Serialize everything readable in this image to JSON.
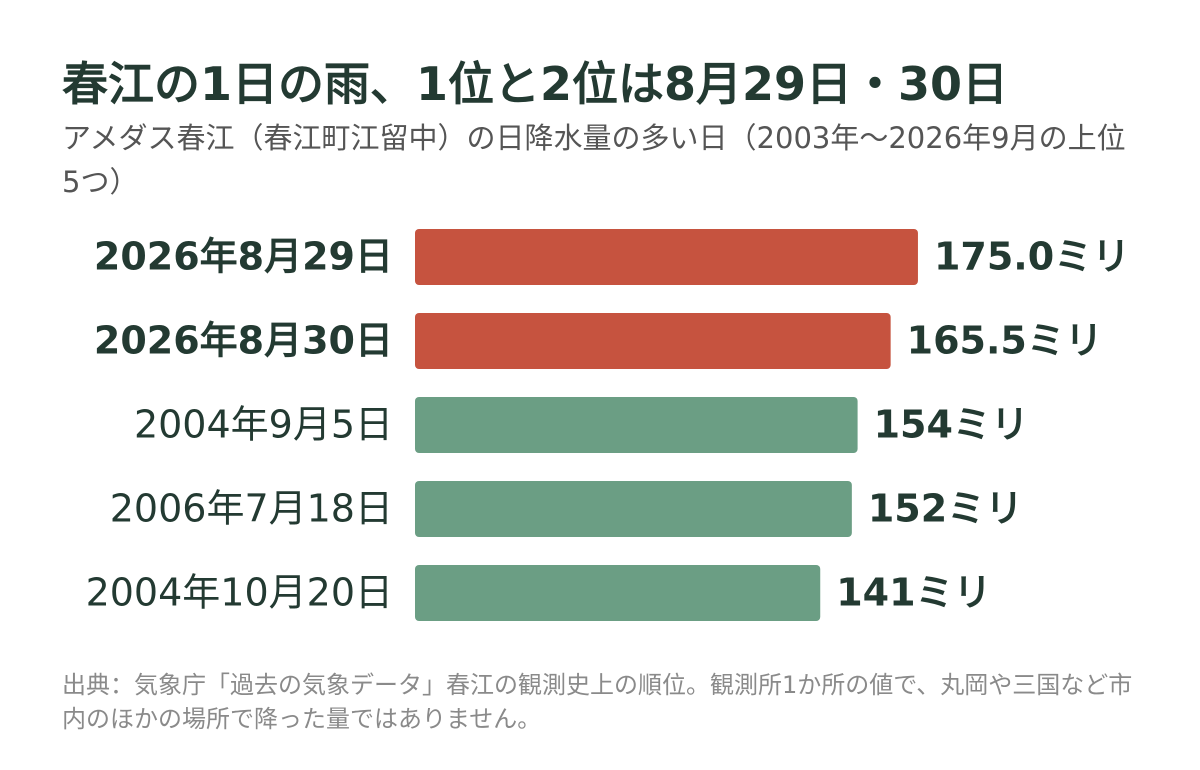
{
  "chart_data": {
    "type": "bar",
    "title": "春江の1日の雨、1位と2位は8月29日・30日",
    "subtitle": "アメダス春江（春江町江留中）の日降水量の多い日（2003年～2026年9月の上位5つ）",
    "categories": [
      "2026年8月29日",
      "2026年8月30日",
      "2004年9月5日",
      "2006年7月18日",
      "2004年10月20日"
    ],
    "values": [
      175.0,
      165.5,
      154,
      152,
      141
    ],
    "value_labels": [
      "175.0ミリ",
      "165.5ミリ",
      "154ミリ",
      "152ミリ",
      "141ミリ"
    ],
    "colors": [
      "#c6533f",
      "#c6533f",
      "#6b9e84",
      "#6b9e84",
      "#6b9e84"
    ],
    "source": "出典：気象庁「過去の気象データ」春江の観測史上の順位。観測所1か所の値で、丸岡や三国など市内のほかの場所で降った量ではありません。"
  }
}
